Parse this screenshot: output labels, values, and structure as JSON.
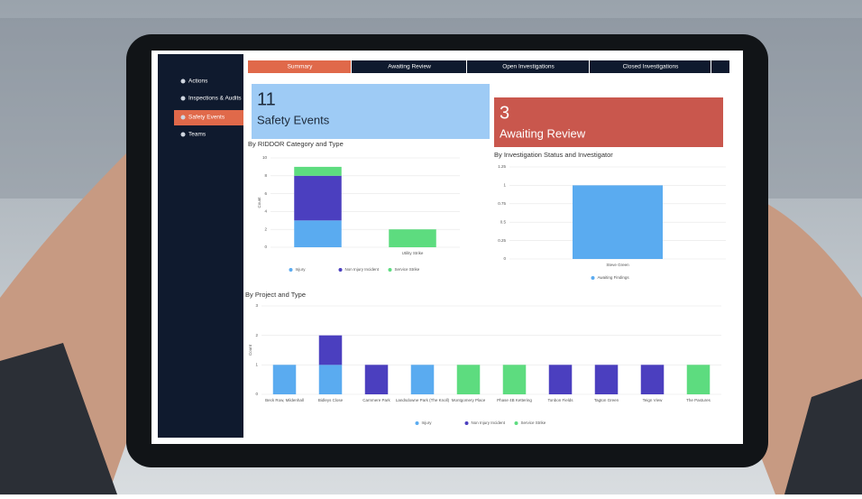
{
  "sidebar": {
    "items": [
      "Actions",
      "Inspections & Audits",
      "Safety Events",
      "Teams"
    ],
    "active": 2
  },
  "tabs": {
    "items": [
      "Summary",
      "Awaiting Review",
      "Open Investigations",
      "Closed Investigations"
    ],
    "active": 0
  },
  "cards": [
    {
      "value": 11,
      "label": "Safety Events",
      "color": "#9ecbf5",
      "text_color": "#1d2a3a"
    },
    {
      "value": 3,
      "label": "Awaiting Review",
      "color": "#c9574d",
      "text_color": "#ffffff"
    }
  ],
  "chart_data": [
    {
      "type": "bar",
      "stacked": true,
      "title": "By RIDDOR Category and Type",
      "y_label": "Count",
      "categories": [
        null,
        "Utility Strike"
      ],
      "series": [
        {
          "name": "Injury",
          "color": "#5aabf0",
          "values": [
            3,
            0
          ]
        },
        {
          "name": "Non Injury Incident",
          "color": "#4b3fbf",
          "values": [
            5,
            0
          ]
        },
        {
          "name": "Service Strike",
          "color": "#5ddc7f",
          "values": [
            1,
            2
          ]
        }
      ],
      "ylim": [
        0,
        10
      ],
      "yticks": [
        0,
        2,
        4,
        6,
        8,
        10
      ],
      "grid": true
    },
    {
      "type": "bar",
      "stacked": true,
      "title": "By Investigation Status and Investigator",
      "categories": [
        "Steve Green"
      ],
      "series": [
        {
          "name": "Awaiting Findings",
          "color": "#5aabf0",
          "values": [
            1
          ]
        }
      ],
      "ylim": [
        0,
        1.25
      ],
      "yticks": [
        0,
        0.25,
        0.5,
        0.75,
        1,
        1.25
      ],
      "grid": true
    },
    {
      "type": "bar",
      "stacked": true,
      "title": "By Project and Type",
      "y_label": "Count",
      "categories": [
        "Beck Row, Mildenhall",
        "Bidleys Close",
        "Carnmere Park",
        "Landsdowne Park (The Knoll)",
        "Montgomery Place",
        "Phase 4B Kettering",
        "Tonbon Fields",
        "Tagton Green",
        "Teign View",
        "The Pastures"
      ],
      "series": [
        {
          "name": "Injury",
          "color": "#5aabf0",
          "values": [
            1,
            1,
            0,
            1,
            0,
            0,
            0,
            0,
            0,
            0
          ]
        },
        {
          "name": "Non Injury Incident",
          "color": "#4b3fbf",
          "values": [
            0,
            1,
            1,
            0,
            0,
            0,
            1,
            1,
            1,
            0
          ]
        },
        {
          "name": "Service Strike",
          "color": "#5ddc7f",
          "values": [
            0,
            0,
            0,
            0,
            1,
            1,
            0,
            0,
            0,
            1
          ]
        }
      ],
      "ylim": [
        0,
        3
      ],
      "yticks": [
        0,
        1,
        2,
        3
      ],
      "grid": true
    }
  ]
}
